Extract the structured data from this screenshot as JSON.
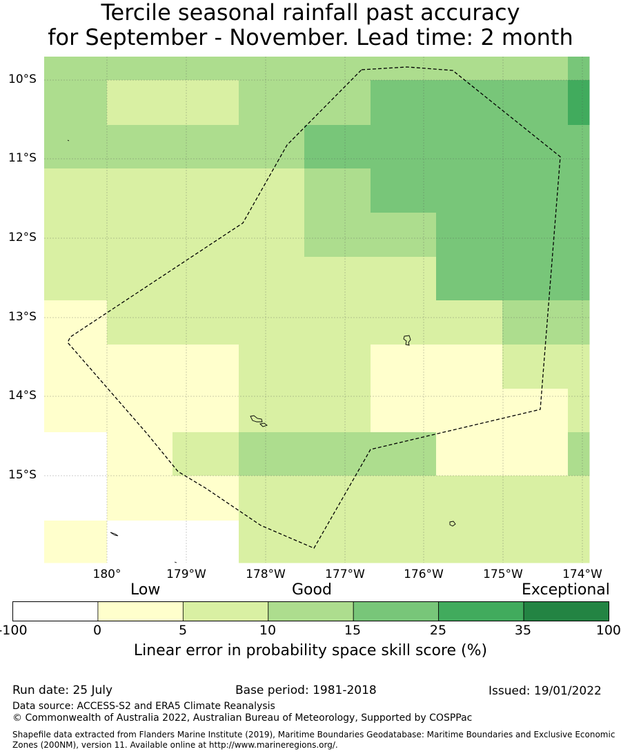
{
  "title": {
    "line1": "Tercile seasonal rainfall past accuracy",
    "line2": "for September - November. Lead time: 2 month"
  },
  "map": {
    "lat_labels": [
      "10°S",
      "11°S",
      "12°S",
      "13°S",
      "14°S",
      "15°S"
    ],
    "lon_labels": [
      "180°",
      "179°W",
      "178°W",
      "177°W",
      "176°W",
      "175°W",
      "174°W"
    ],
    "palette": [
      "#ffffff",
      "#ffffcc",
      "#d9f0a3",
      "#addd8e",
      "#78c679",
      "#41ab5d",
      "#238443"
    ],
    "grid_rows_top_to_bottom": [
      "3333333344",
      "3223344455",
      "3333444445",
      "2222344444",
      "2222334444",
      "2222224445",
      "1222222333",
      "1112211223",
      "1112211122",
      "0123331132",
      "0112222222",
      "1002222221"
    ]
  },
  "legend": {
    "categories": [
      "Low",
      "Good",
      "Exceptional"
    ],
    "ticks": [
      "-100",
      "0",
      "5",
      "10",
      "15",
      "25",
      "35",
      "100"
    ],
    "colors": [
      "#ffffff",
      "#ffffcc",
      "#d9f0a3",
      "#addd8e",
      "#78c679",
      "#41ab5d",
      "#238443"
    ],
    "label": "Linear error in probability space skill score (%)"
  },
  "footer": {
    "run_date": "Run date: 25 July",
    "base_period": "Base period: 1981-2018",
    "issued": "Issued: 19/01/2022",
    "data_source": "Data source: ACCESS-S2 and ERA5 Climate Reanalysis",
    "copyright": "© Commonwealth of Australia 2022, Australian Bureau of Meteorology, Supported by COSPPac",
    "shapefile": "Shapefile data extracted from Flanders Marine Institute (2019), Maritime Boundaries Geodatabase: Maritime Boundaries and Exclusive Economic Zones (200NM), version 11. Available online at http://www.marineregions.org/."
  }
}
